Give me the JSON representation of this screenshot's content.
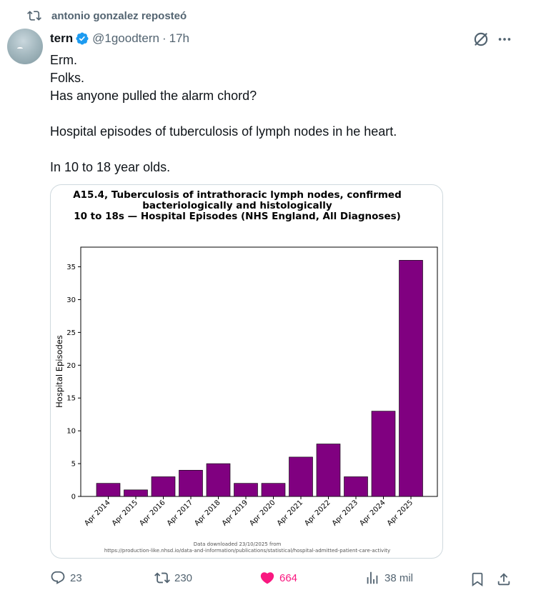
{
  "repost": {
    "label": "antonio gonzalez reposteó"
  },
  "author": {
    "name": "tern",
    "handle": "@1goodtern",
    "time": "17h"
  },
  "tweet": {
    "lines": [
      "Erm.",
      "Folks.",
      "Has anyone pulled the alarm chord?",
      "",
      "Hospital episodes of tuberculosis of lymph nodes in he heart.",
      "",
      "In 10 to 18 year olds."
    ]
  },
  "chart_data": {
    "type": "bar",
    "title_lines": [
      "A15.4, Tuberculosis of intrathoracic lymph nodes, confirmed",
      "bacteriologically and histologically",
      "10 to 18s — Hospital Episodes (NHS England, All Diagnoses)"
    ],
    "xlabel": "",
    "ylabel": "Hospital Episodes",
    "categories": [
      "Apr 2014",
      "Apr 2015",
      "Apr 2016",
      "Apr 2017",
      "Apr 2018",
      "Apr 2019",
      "Apr 2020",
      "Apr 2021",
      "Apr 2022",
      "Apr 2023",
      "Apr 2024",
      "Apr 2025"
    ],
    "values": [
      2,
      1,
      3,
      4,
      5,
      2,
      2,
      6,
      8,
      3,
      13,
      36
    ],
    "yticks": [
      0,
      5,
      10,
      15,
      20,
      25,
      30,
      35
    ],
    "ylim": [
      0,
      38
    ],
    "bar_color": "#800080",
    "grid": false,
    "footnote_lines": [
      "Data downloaded 23/10/2025 from",
      "https://production-like.nhsd.io/data-and-information/publications/statistical/hospital-admitted-patient-care-activity"
    ]
  },
  "actions": {
    "replies": "23",
    "reposts": "230",
    "likes": "664",
    "views": "38 mil"
  },
  "colors": {
    "like": "#f91880",
    "verified": "#1d9bf0",
    "muted": "#536471"
  }
}
